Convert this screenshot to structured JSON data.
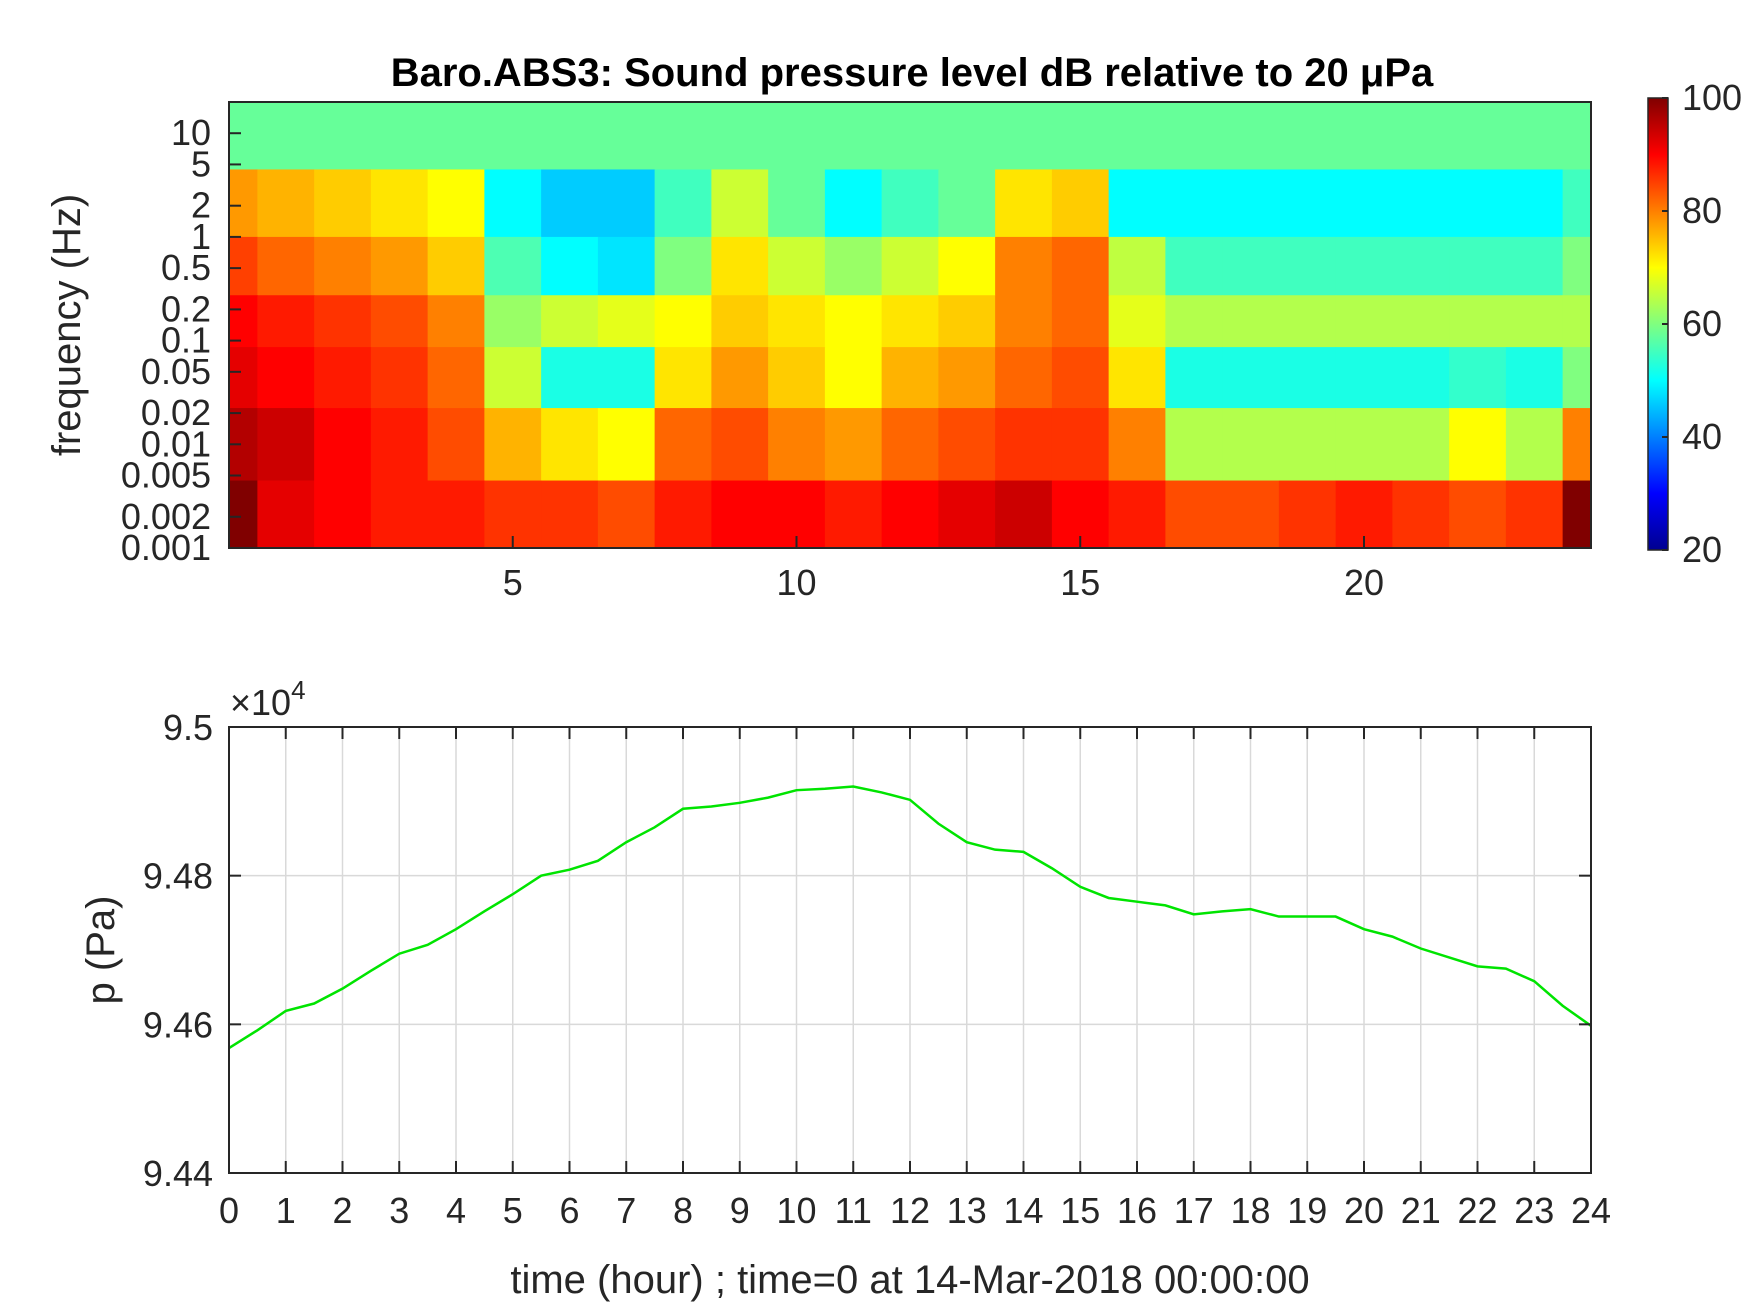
{
  "chart_data": [
    {
      "type": "heatmap",
      "title": "Baro.ABS3: Sound pressure level dB relative to 20 μPa",
      "ylabel": "frequency (Hz)",
      "xlabel": "",
      "xlim": [
        0,
        24
      ],
      "x_ticks": [
        5,
        10,
        15,
        20
      ],
      "y_scale": "log",
      "ylim": [
        0.001,
        20
      ],
      "y_ticks": [
        {
          "value": 0.001,
          "label": "0.001"
        },
        {
          "value": 0.002,
          "label": "0.002"
        },
        {
          "value": 0.005,
          "label": "0.005"
        },
        {
          "value": 0.01,
          "label": "0.01"
        },
        {
          "value": 0.02,
          "label": "0.02"
        },
        {
          "value": 0.05,
          "label": "0.05"
        },
        {
          "value": 0.1,
          "label": "0.1"
        },
        {
          "value": 0.2,
          "label": "0.2"
        },
        {
          "value": 0.5,
          "label": "0.5"
        },
        {
          "value": 1,
          "label": "1"
        },
        {
          "value": 2,
          "label": "2"
        },
        {
          "value": 5,
          "label": "5"
        },
        {
          "value": 10,
          "label": "10"
        }
      ],
      "colormap": "jet",
      "colorbar": {
        "range": [
          20,
          100
        ],
        "ticks": [
          20,
          40,
          60,
          80,
          100
        ],
        "placement": "right"
      },
      "time_hours": [
        0,
        1,
        2,
        3,
        4,
        5,
        6,
        7,
        8,
        9,
        10,
        11,
        12,
        13,
        14,
        15,
        16,
        17,
        18,
        19,
        20,
        21,
        22,
        23,
        24
      ],
      "frequency_bands_hz": [
        10,
        2,
        0.5,
        0.15,
        0.05,
        0.01,
        0.002
      ],
      "levels_db": [
        [
          58,
          58,
          58,
          58,
          58,
          58,
          58,
          58,
          58,
          58,
          58,
          58,
          58,
          58,
          58,
          58,
          58,
          58,
          58,
          58,
          58,
          58,
          58,
          58,
          58
        ],
        [
          78,
          76,
          74,
          72,
          70,
          50,
          46,
          46,
          55,
          66,
          58,
          50,
          55,
          58,
          72,
          74,
          50,
          50,
          50,
          50,
          50,
          50,
          50,
          50,
          55
        ],
        [
          85,
          82,
          80,
          78,
          74,
          56,
          50,
          48,
          60,
          72,
          66,
          62,
          66,
          70,
          80,
          82,
          65,
          55,
          55,
          55,
          55,
          55,
          55,
          55,
          60
        ],
        [
          90,
          88,
          86,
          84,
          80,
          62,
          66,
          68,
          70,
          74,
          72,
          70,
          72,
          74,
          80,
          82,
          68,
          64,
          64,
          64,
          64,
          64,
          64,
          64,
          64
        ],
        [
          92,
          90,
          88,
          86,
          82,
          66,
          52,
          52,
          72,
          78,
          74,
          70,
          76,
          78,
          82,
          84,
          72,
          52,
          52,
          52,
          52,
          52,
          54,
          52,
          60
        ],
        [
          96,
          94,
          90,
          88,
          84,
          76,
          72,
          70,
          82,
          84,
          80,
          78,
          82,
          84,
          86,
          86,
          80,
          64,
          64,
          64,
          64,
          64,
          70,
          64,
          80
        ],
        [
          100,
          92,
          90,
          88,
          88,
          86,
          86,
          84,
          88,
          90,
          90,
          88,
          90,
          92,
          94,
          90,
          88,
          84,
          84,
          86,
          88,
          86,
          84,
          86,
          100
        ]
      ]
    },
    {
      "type": "line",
      "title": "",
      "xlabel": "time (hour) ; time=0 at 14-Mar-2018 00:00:00",
      "ylabel": "p (Pa)",
      "y_exponent_label": "×10",
      "y_exponent": "4",
      "xlim": [
        0,
        24
      ],
      "ylim": [
        9.44,
        9.5
      ],
      "x_ticks": [
        0,
        1,
        2,
        3,
        4,
        5,
        6,
        7,
        8,
        9,
        10,
        11,
        12,
        13,
        14,
        15,
        16,
        17,
        18,
        19,
        20,
        21,
        22,
        23,
        24
      ],
      "y_ticks": [
        {
          "value": 9.44,
          "label": "9.44"
        },
        {
          "value": 9.46,
          "label": "9.46"
        },
        {
          "value": 9.48,
          "label": "9.48"
        },
        {
          "value": 9.5,
          "label": "9.5"
        }
      ],
      "grid": true,
      "color": "#00e400",
      "x": [
        0,
        0.5,
        1,
        1.5,
        2,
        2.5,
        3,
        3.5,
        4,
        4.5,
        5,
        5.5,
        6,
        6.5,
        7,
        7.5,
        8,
        8.5,
        9,
        9.5,
        10,
        10.5,
        11,
        11.5,
        12,
        12.5,
        13,
        13.5,
        14,
        14.5,
        15,
        15.5,
        16,
        16.5,
        17,
        17.5,
        18,
        18.5,
        19,
        19.5,
        20,
        20.5,
        21,
        21.5,
        22,
        22.5,
        23,
        23.5,
        24
      ],
      "y": [
        9.4568,
        9.4592,
        9.4618,
        9.4628,
        9.4648,
        9.4672,
        9.4695,
        9.4707,
        9.4728,
        9.4752,
        9.4775,
        9.48,
        9.4808,
        9.482,
        9.4845,
        9.4865,
        9.489,
        9.4893,
        9.4898,
        9.4905,
        9.4915,
        9.4917,
        9.492,
        9.4912,
        9.4902,
        9.487,
        9.4845,
        9.4835,
        9.4832,
        9.481,
        9.4785,
        9.477,
        9.4765,
        9.476,
        9.4748,
        9.4752,
        9.4755,
        9.4745,
        9.4745,
        9.4745,
        9.4728,
        9.4718,
        9.4702,
        9.469,
        9.4678,
        9.4675,
        9.4658,
        9.4625,
        9.4598
      ]
    }
  ]
}
